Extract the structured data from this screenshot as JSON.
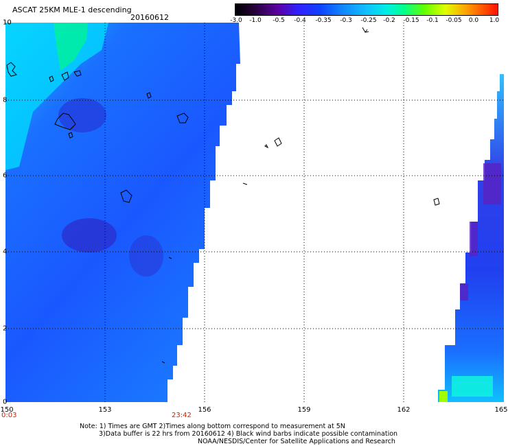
{
  "header": {
    "title": "ASCAT 25KM MLE-1 descending",
    "date": "20160612"
  },
  "colorbar": {
    "labels": [
      "-3.0",
      "-1.0",
      "-0.5",
      "-0.4",
      "-0.35",
      "-0.3",
      "-0.25",
      "-0.2",
      "-0.15",
      "-0.1",
      "-0.05",
      "0.0",
      "1.0"
    ],
    "colors": [
      "#000000",
      "#3b0060",
      "#6a00b0",
      "#2020ff",
      "#1060ff",
      "#10a0ff",
      "#00e0e0",
      "#00ffa0",
      "#60ff00",
      "#e0ff00",
      "#ffa000",
      "#ff4000",
      "#ff0000"
    ]
  },
  "axes": {
    "y_labels": [
      "10",
      "8",
      "6",
      "4",
      "2",
      "0"
    ],
    "x_labels": [
      "150",
      "153",
      "156",
      "159",
      "162",
      "165"
    ]
  },
  "times": {
    "start": "0:03",
    "end": "23:42"
  },
  "notes": [
    "Note: 1) Times are GMT 2)Times along bottom correspond to measurement at 5N",
    "3)Data buffer is 22 hrs from 20160612 4) Black wind barbs indicate possible contamination",
    "NOAA/NESDIS/Center for Satellite Applications and Research"
  ]
}
